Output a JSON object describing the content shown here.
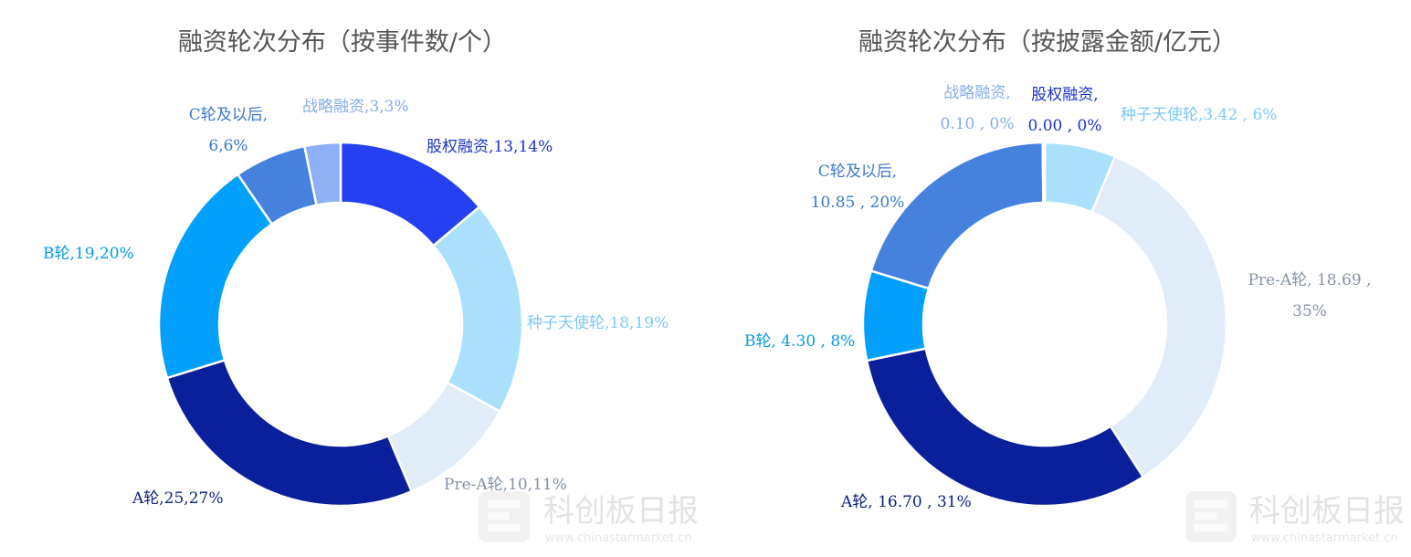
{
  "chart_data": [
    {
      "type": "pie",
      "title": "融资轮次分布（按事件数/个）",
      "slices": [
        {
          "name": "股权融资",
          "value": 13,
          "percent": "14%",
          "color": "#2440f0",
          "label_lines": [
            "股权融资,13,14%"
          ]
        },
        {
          "name": "种子天使轮",
          "value": 18,
          "percent": "19%",
          "color": "#abe0fd",
          "label_lines": [
            "种子天使轮,18,19%"
          ]
        },
        {
          "name": "Pre-A轮",
          "value": 10,
          "percent": "11%",
          "color": "#e1ecf9",
          "label_lines": [
            "Pre-A轮,10,11%"
          ]
        },
        {
          "name": "A轮",
          "value": 25,
          "percent": "27%",
          "color": "#0a1f9a",
          "label_lines": [
            "A轮,25,27%"
          ]
        },
        {
          "name": "B轮",
          "value": 19,
          "percent": "20%",
          "color": "#01a0fc",
          "label_lines": [
            "B轮,19,20%"
          ]
        },
        {
          "name": "C轮及以后",
          "value": 6,
          "percent": "6%",
          "color": "#4681de",
          "label_lines": [
            "C轮及以后,",
            "6,6%"
          ]
        },
        {
          "name": "战略融资",
          "value": 3,
          "percent": "3%",
          "color": "#8db0f5",
          "label_lines": [
            "战略融资,3,3%"
          ]
        }
      ]
    },
    {
      "type": "pie",
      "title": "融资轮次分布（按披露金额/亿元）",
      "slices": [
        {
          "name": "股权融资",
          "value": 0.0,
          "percent": "0%",
          "color": "#2440f0",
          "label_lines": [
            "股权融资,",
            "0.00 , 0%"
          ]
        },
        {
          "name": "种子天使轮",
          "value": 3.42,
          "percent": "6%",
          "color": "#abe0fd",
          "label_lines": [
            "种子天使轮,3.42 , 6%"
          ]
        },
        {
          "name": "Pre-A轮",
          "value": 18.69,
          "percent": "35%",
          "color": "#e1ecf9",
          "label_lines": [
            "Pre-A轮, 18.69 ,",
            "35%"
          ]
        },
        {
          "name": "A轮",
          "value": 16.7,
          "percent": "31%",
          "color": "#0a1f9a",
          "label_lines": [
            "A轮, 16.70 , 31%"
          ]
        },
        {
          "name": "B轮",
          "value": 4.3,
          "percent": "8%",
          "color": "#01a0fc",
          "label_lines": [
            "B轮, 4.30 , 8%"
          ]
        },
        {
          "name": "C轮及以后",
          "value": 10.85,
          "percent": "20%",
          "color": "#4681de",
          "label_lines": [
            "C轮及以后,",
            "10.85 , 20%"
          ]
        },
        {
          "name": "战略融资",
          "value": 0.1,
          "percent": "0%",
          "color": "#8db0f5",
          "label_lines": [
            "战略融资,",
            "0.10 , 0%"
          ]
        }
      ]
    }
  ],
  "label_colors": {
    "股权融资": "#1a33c8",
    "种子天使轮": "#7cc8f4",
    "Pre-A轮": "#8592a6",
    "A轮": "#0a1f7a",
    "B轮": "#0699e6",
    "C轮及以后": "#3d78c9",
    "战略融资": "#84aee6"
  },
  "watermark": {
    "brand": "科创板日报",
    "url": "www.chinastarmarket.cn"
  }
}
